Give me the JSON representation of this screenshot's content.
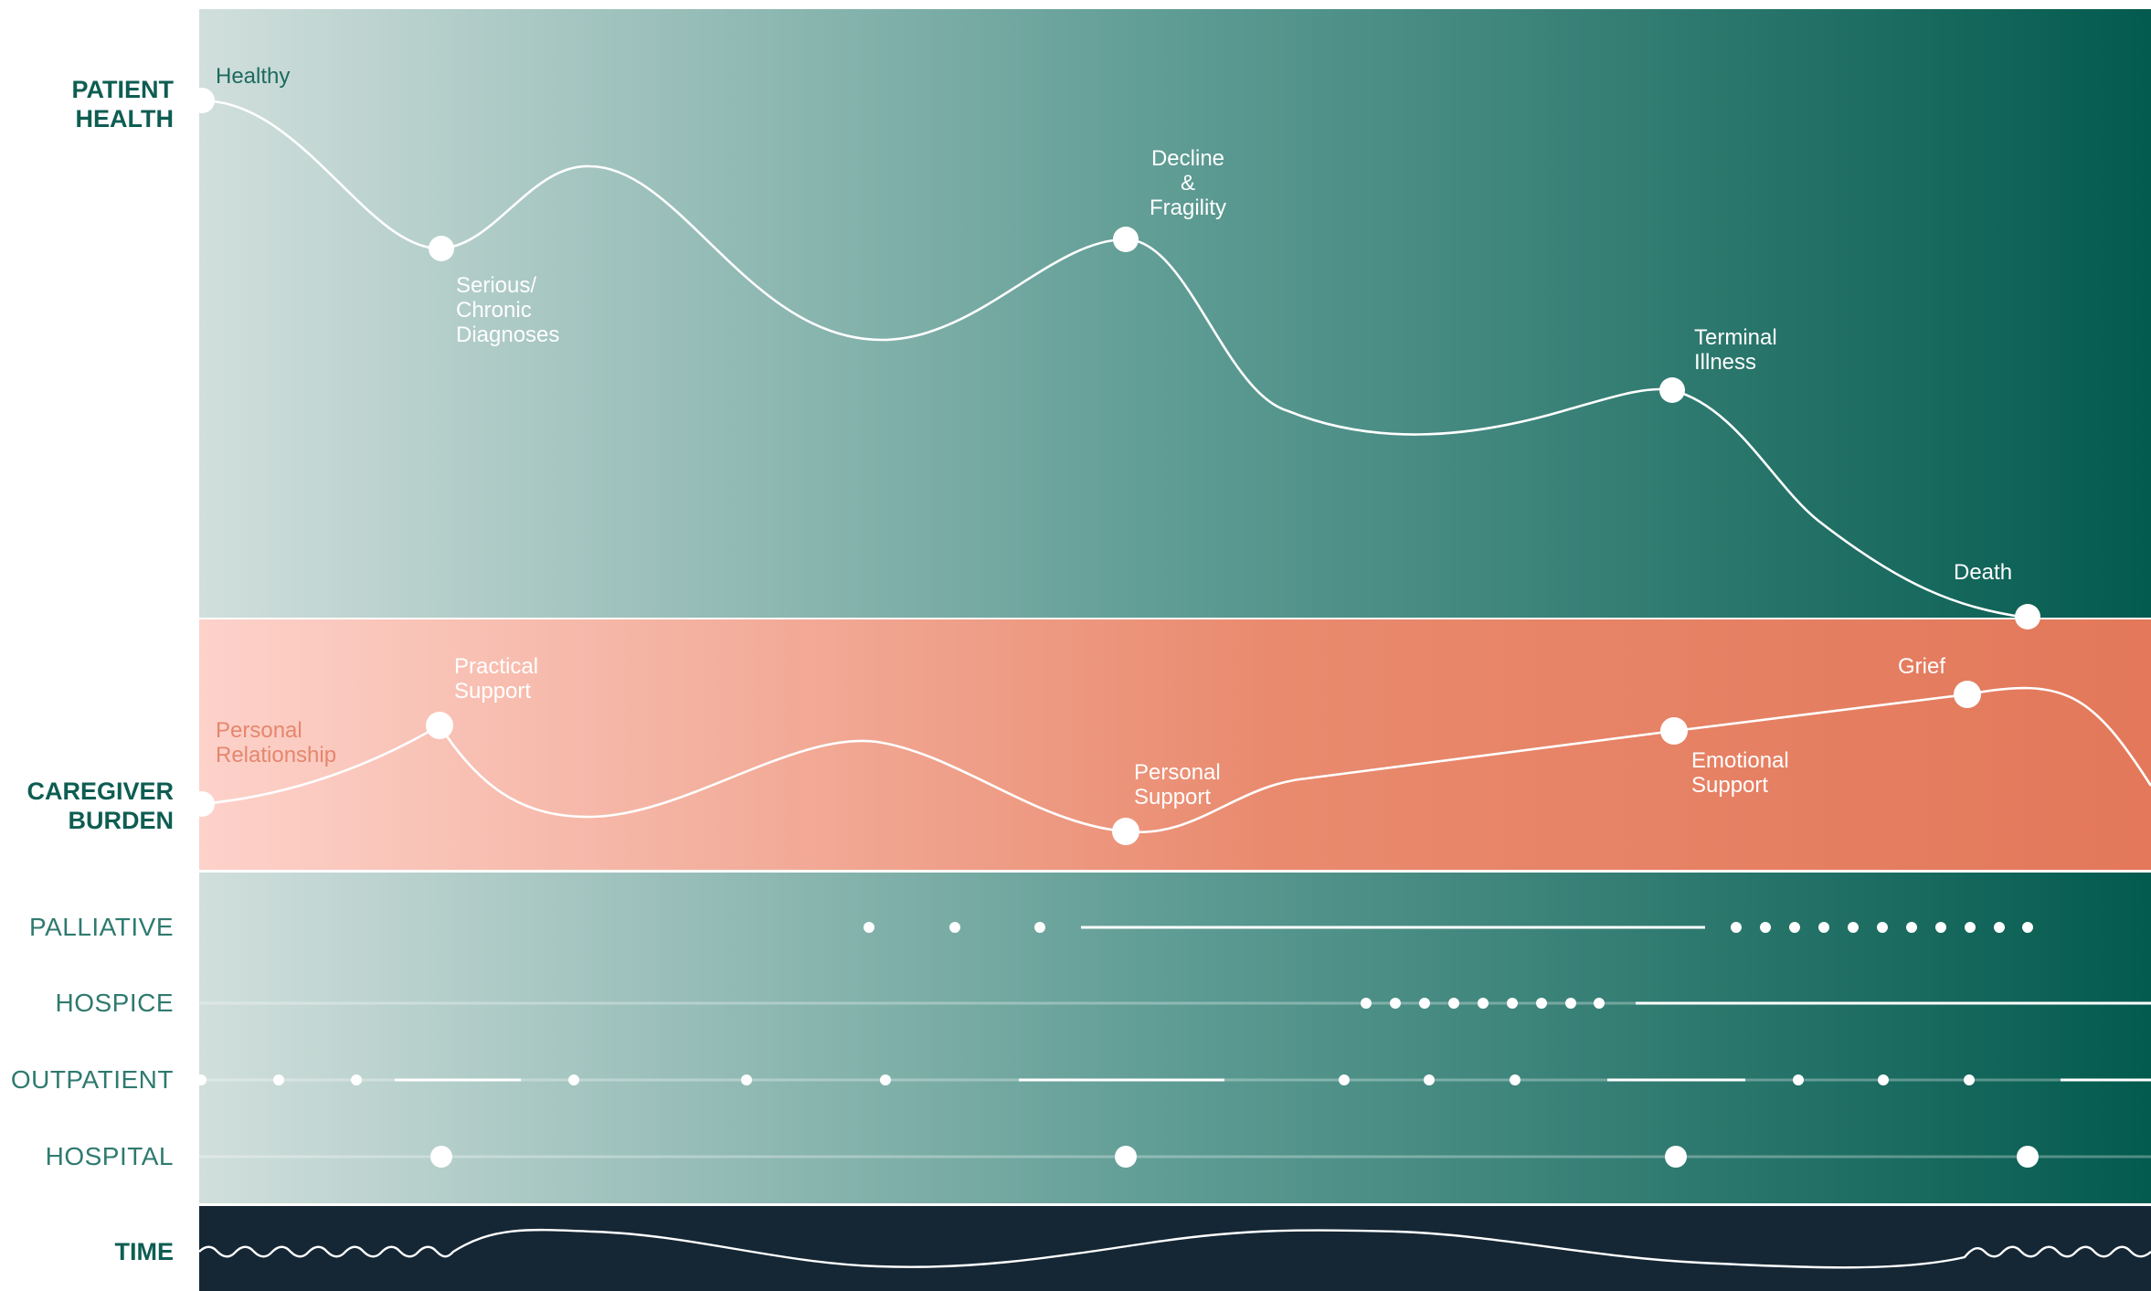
{
  "colors": {
    "dark_teal": "#035a4e",
    "light_teal": "#d1dfdc",
    "coral_light": "#fdd2ca",
    "coral_dark": "#e3785a",
    "navy": "#152735",
    "white": "#ffffff",
    "label_teal": "#0e5d52",
    "label_coral": "#e4876e"
  },
  "rows": {
    "patient_health": "PATIENT\nHEALTH",
    "caregiver_burden": "CAREGIVER\nBURDEN",
    "palliative": "PALLIATIVE",
    "hospice": "HOSPICE",
    "outpatient": "OUTPATIENT",
    "hospital": "HOSPITAL",
    "time": "TIME"
  },
  "health_milestones": {
    "healthy": "Healthy",
    "serious": "Serious/\nChronic\nDiagnoses",
    "decline": "Decline\n&\nFragility",
    "terminal": "Terminal\nIllness",
    "death": "Death"
  },
  "burden_milestones": {
    "personal_relationship": "Personal\nRelationship",
    "practical_support": "Practical\nSupport",
    "personal_support": "Personal\nSupport",
    "emotional_support": "Emotional\nSupport",
    "grief": "Grief"
  }
}
